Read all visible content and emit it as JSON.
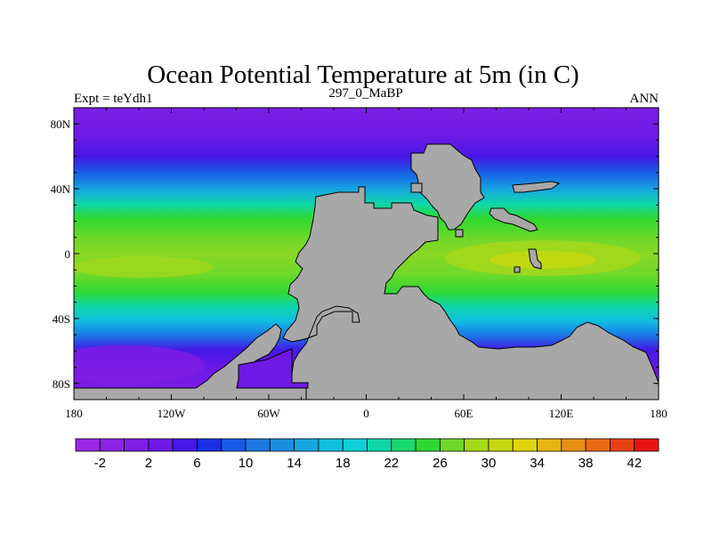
{
  "chart_data": {
    "type": "heatmap",
    "title": "Ocean Potential Temperature at 5m (in C)",
    "left_label": "Expt = teYdh1",
    "center_label": "297_0_MaBP",
    "right_label": "ANN",
    "x_range": [
      -180,
      180
    ],
    "y_range": [
      -90,
      90
    ],
    "x_ticks": [
      {
        "value": -180,
        "label": "180"
      },
      {
        "value": -120,
        "label": "120W"
      },
      {
        "value": -60,
        "label": "60W"
      },
      {
        "value": 0,
        "label": "0"
      },
      {
        "value": 60,
        "label": "60E"
      },
      {
        "value": 120,
        "label": "120E"
      },
      {
        "value": 180,
        "label": "180"
      }
    ],
    "y_ticks": [
      {
        "value": 80,
        "label": "80N"
      },
      {
        "value": 40,
        "label": "40N"
      },
      {
        "value": 0,
        "label": "0"
      },
      {
        "value": -40,
        "label": "40S"
      },
      {
        "value": -80,
        "label": "80S"
      }
    ],
    "land_color": "#a8a8a8",
    "colorbar": {
      "levels": [
        -4,
        -2,
        0,
        2,
        4,
        6,
        8,
        10,
        12,
        14,
        16,
        18,
        20,
        22,
        24,
        26,
        28,
        30,
        32,
        34,
        36,
        38,
        40,
        42,
        44
      ],
      "labels": [
        {
          "value": -2,
          "label": "-2"
        },
        {
          "value": 2,
          "label": "2"
        },
        {
          "value": 6,
          "label": "6"
        },
        {
          "value": 10,
          "label": "10"
        },
        {
          "value": 14,
          "label": "14"
        },
        {
          "value": 18,
          "label": "18"
        },
        {
          "value": 22,
          "label": "22"
        },
        {
          "value": 26,
          "label": "26"
        },
        {
          "value": 30,
          "label": "30"
        },
        {
          "value": 34,
          "label": "34"
        },
        {
          "value": 38,
          "label": "38"
        },
        {
          "value": 42,
          "label": "42"
        }
      ],
      "colors": [
        "#9a28e6",
        "#8c23e6",
        "#7f1ee6",
        "#6e19e6",
        "#4418e6",
        "#1a2ee6",
        "#1a5ae6",
        "#1f78e0",
        "#1a8ee0",
        "#16a6e0",
        "#10bfe0",
        "#0fd0d8",
        "#0fd7a8",
        "#1ad870",
        "#30d830",
        "#70d82a",
        "#a6d81a",
        "#c6d810",
        "#e0d410",
        "#e8b414",
        "#e89014",
        "#e86a14",
        "#e84214",
        "#e81414"
      ]
    }
  }
}
